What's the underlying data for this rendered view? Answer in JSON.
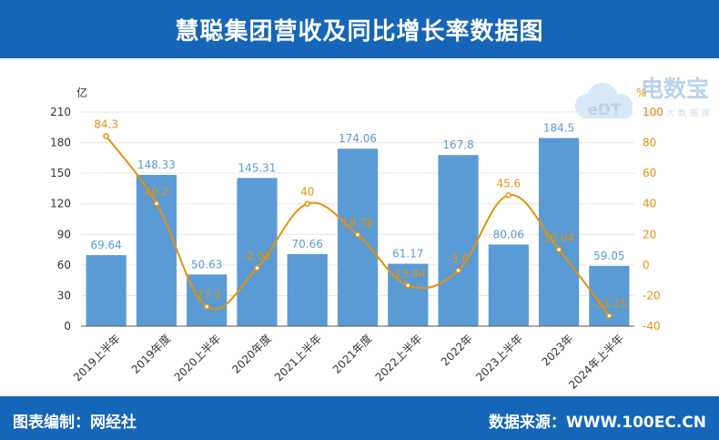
{
  "title": "慧聪集团营收及同比增长率数据图",
  "footer": {
    "editor": "图表编制：网经社",
    "source": "数据来源：WWW.100EC.CN"
  },
  "watermark": {
    "brand": "电数宝",
    "icon_text": "eDT",
    "tagline": "电商大数据库"
  },
  "colors": {
    "header_bg": "#1565b8",
    "bar": "#5b9bd5",
    "line": "#e3920e",
    "bar_label": "#5b9bd5",
    "line_label": "#e3920e"
  },
  "chart_data": {
    "type": "bar",
    "categories": [
      "2019上半年",
      "2019年度",
      "2020上半年",
      "2020年度",
      "2021上半年",
      "2021年度",
      "2022上半年",
      "2022年",
      "2023上半年",
      "2023年",
      "2024年上半年"
    ],
    "series": [
      {
        "type": "bar",
        "axis": "left",
        "values": [
          69.64,
          148.33,
          50.63,
          145.31,
          70.66,
          174.06,
          61.17,
          167.8,
          80.06,
          184.5,
          59.05
        ]
      },
      {
        "type": "line",
        "axis": "right",
        "values": [
          84.3,
          40.2,
          -27.3,
          -2.02,
          40,
          19.78,
          -13.44,
          -3.6,
          45.6,
          10.04,
          -33.25
        ]
      }
    ],
    "y_left": {
      "unit": "亿",
      "ticks": [
        "0",
        "30",
        "60",
        "90",
        "120",
        "150",
        "180",
        "210"
      ],
      "ylim": [
        0,
        210
      ]
    },
    "y_right": {
      "unit": "%",
      "ticks": [
        "-40",
        "-20",
        "0",
        "20",
        "40",
        "60",
        "80",
        "100"
      ],
      "ylim": [
        -40,
        100
      ]
    },
    "grid": true
  }
}
